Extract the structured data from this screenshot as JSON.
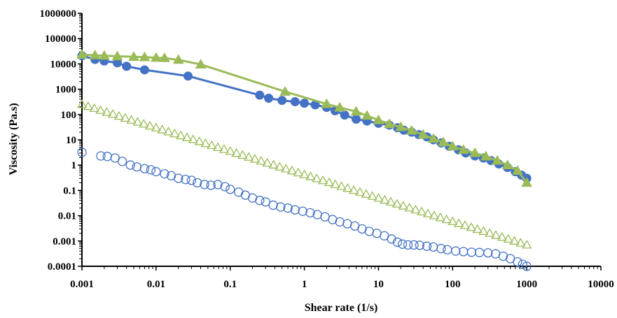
{
  "chart_data": {
    "type": "line",
    "title": "",
    "xlabel": "Shear rate (1/s)",
    "ylabel": "Viscosity (Pa.s)",
    "xscale": "log",
    "yscale": "log",
    "xlim": [
      0.001,
      10000
    ],
    "ylim": [
      0.0001,
      1000000
    ],
    "grid": false,
    "legend": "none",
    "x_ticks": [
      "0.001",
      "0.01",
      "0.1",
      "1",
      "10",
      "100",
      "1000",
      "10000"
    ],
    "y_ticks": [
      "0.0001",
      "0.001",
      "0.01",
      "0.1",
      "1",
      "10",
      "100",
      "1000",
      "10000",
      "100000",
      "1000000"
    ],
    "series": [
      {
        "marker": "filled-circle",
        "color": "#4472C4",
        "line": true,
        "points": [
          [
            0.001,
            21000
          ],
          [
            0.0015,
            15000
          ],
          [
            0.002,
            13000
          ],
          [
            0.003,
            11000
          ],
          [
            0.004,
            8000
          ],
          [
            0.007,
            5800
          ],
          [
            0.027,
            3300
          ],
          [
            0.25,
            580
          ],
          [
            0.33,
            440
          ],
          [
            0.5,
            360
          ],
          [
            0.75,
            320
          ],
          [
            1.0,
            280
          ],
          [
            1.4,
            240
          ],
          [
            2.0,
            190
          ],
          [
            2.6,
            140
          ],
          [
            3.5,
            95
          ],
          [
            5,
            65
          ],
          [
            7,
            55
          ],
          [
            10,
            45
          ],
          [
            14,
            38
          ],
          [
            18,
            30
          ],
          [
            22,
            24
          ],
          [
            28,
            20
          ],
          [
            35,
            16
          ],
          [
            45,
            13
          ],
          [
            55,
            10
          ],
          [
            70,
            7.5
          ],
          [
            90,
            5.5
          ],
          [
            120,
            4
          ],
          [
            150,
            3
          ],
          [
            200,
            2.3
          ],
          [
            260,
            1.9
          ],
          [
            330,
            1.5
          ],
          [
            420,
            1.1
          ],
          [
            550,
            0.8
          ],
          [
            700,
            0.55
          ],
          [
            850,
            0.4
          ],
          [
            1000,
            0.3
          ]
        ]
      },
      {
        "marker": "filled-triangle",
        "color": "#9BBB59",
        "line": true,
        "points": [
          [
            0.001,
            23000
          ],
          [
            0.0015,
            22000
          ],
          [
            0.002,
            21000
          ],
          [
            0.003,
            20000
          ],
          [
            0.005,
            19000
          ],
          [
            0.007,
            18500
          ],
          [
            0.01,
            17500
          ],
          [
            0.013,
            17000
          ],
          [
            0.02,
            14500
          ],
          [
            0.04,
            9500
          ],
          [
            0.55,
            800
          ],
          [
            2,
            260
          ],
          [
            3,
            190
          ],
          [
            5,
            130
          ],
          [
            7,
            90
          ],
          [
            10,
            60
          ],
          [
            14,
            42
          ],
          [
            20,
            32
          ],
          [
            28,
            23
          ],
          [
            40,
            16
          ],
          [
            55,
            11
          ],
          [
            75,
            8
          ],
          [
            100,
            5.5
          ],
          [
            140,
            4
          ],
          [
            200,
            3
          ],
          [
            280,
            2.2
          ],
          [
            400,
            1.5
          ],
          [
            550,
            1
          ],
          [
            750,
            0.6
          ],
          [
            1000,
            0.2
          ]
        ]
      },
      {
        "marker": "open-triangle",
        "color": "#9BBB59",
        "line": false,
        "points": [
          [
            0.001,
            250
          ],
          [
            1000,
            0.0007
          ]
        ]
      },
      {
        "marker": "open-circle",
        "color": "#4472C4",
        "line": false,
        "points": [
          [
            0.001,
            3.2
          ],
          [
            0.0018,
            2.3
          ],
          [
            0.0022,
            2.2
          ],
          [
            0.0028,
            1.9
          ],
          [
            0.0035,
            1.4
          ],
          [
            0.0045,
            1.0
          ],
          [
            0.0055,
            0.85
          ],
          [
            0.007,
            0.72
          ],
          [
            0.0085,
            0.65
          ],
          [
            0.01,
            0.55
          ],
          [
            0.013,
            0.45
          ],
          [
            0.016,
            0.38
          ],
          [
            0.02,
            0.3
          ],
          [
            0.025,
            0.27
          ],
          [
            0.03,
            0.25
          ],
          [
            0.036,
            0.2
          ],
          [
            0.045,
            0.17
          ],
          [
            0.055,
            0.16
          ],
          [
            0.068,
            0.17
          ],
          [
            0.085,
            0.14
          ],
          [
            0.1,
            0.11
          ],
          [
            0.13,
            0.085
          ],
          [
            0.16,
            0.065
          ],
          [
            0.2,
            0.05
          ],
          [
            0.25,
            0.04
          ],
          [
            0.3,
            0.035
          ],
          [
            0.38,
            0.026
          ],
          [
            0.48,
            0.022
          ],
          [
            0.6,
            0.02
          ],
          [
            0.75,
            0.017
          ],
          [
            0.95,
            0.015
          ],
          [
            1.2,
            0.013
          ],
          [
            1.5,
            0.011
          ],
          [
            1.9,
            0.009
          ],
          [
            2.4,
            0.007
          ],
          [
            3,
            0.0057
          ],
          [
            3.8,
            0.0048
          ],
          [
            4.8,
            0.0039
          ],
          [
            6,
            0.003
          ],
          [
            7.5,
            0.0024
          ],
          [
            9.5,
            0.002
          ],
          [
            12,
            0.0016
          ],
          [
            15,
            0.0012
          ],
          [
            18,
            0.0009
          ],
          [
            21,
            0.00075
          ],
          [
            25,
            0.0007
          ],
          [
            30,
            0.0007
          ],
          [
            36,
            0.00068
          ],
          [
            45,
            0.00062
          ],
          [
            55,
            0.00058
          ],
          [
            70,
            0.0005
          ],
          [
            85,
            0.00045
          ],
          [
            110,
            0.0004
          ],
          [
            140,
            0.00038
          ],
          [
            180,
            0.00036
          ],
          [
            230,
            0.00035
          ],
          [
            300,
            0.00034
          ],
          [
            380,
            0.00031
          ],
          [
            480,
            0.00025
          ],
          [
            600,
            0.0002
          ],
          [
            750,
            0.00015
          ],
          [
            880,
            0.00012
          ],
          [
            1000,
            0.0001
          ]
        ]
      }
    ]
  }
}
